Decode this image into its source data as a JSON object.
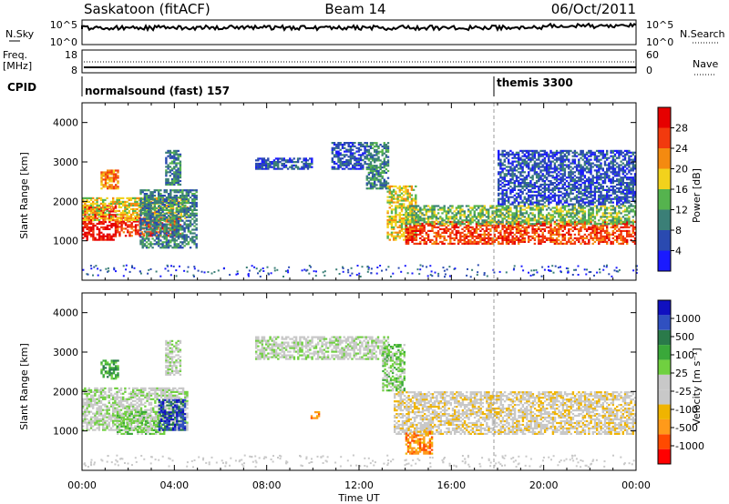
{
  "header": {
    "station": "Saskatoon (fitACF)",
    "beam": "Beam 14",
    "date": "06/Oct/2011"
  },
  "noise_panel": {
    "left_label": "N.Sky",
    "right_label": "N.Search",
    "left_ticks": [
      "10^5",
      "10^0"
    ],
    "right_ticks": [
      "10^5",
      "10^0"
    ]
  },
  "freq_panel": {
    "label_line1": "Freq.",
    "label_line2": "[MHz]",
    "right_label": "Nave",
    "left_ticks": [
      "18",
      "8"
    ],
    "right_ticks": [
      "60",
      "0"
    ]
  },
  "cpid": {
    "label": "CPID",
    "programs": [
      {
        "name": "normalsound (fast) 157",
        "start_hour": 0.0
      },
      {
        "name": "themis 3300",
        "start_hour": 18.0
      }
    ]
  },
  "colors": {
    "power_scale": [
      "#1a1aff",
      "#2a4ab0",
      "#3b7f77",
      "#55b34e",
      "#f2d21c",
      "#f48a10",
      "#f23a0e",
      "#e60000"
    ],
    "velocity_scale": [
      "#ff0000",
      "#ff4a00",
      "#ff9a1a",
      "#f0b400",
      "#c8c8c8",
      "#c8c8c8",
      "#70d040",
      "#3aa83a",
      "#2a7a4a",
      "#3050c0",
      "#1010c0"
    ],
    "ground_scatter": "#c0c0c0"
  },
  "chart_data": [
    {
      "type": "heatmap",
      "title": "Power",
      "ylabel": "Slant Range [km]",
      "xlabel": "",
      "y_ticks": [
        "1000",
        "2000",
        "3000",
        "4000"
      ],
      "ylim": [
        0,
        4500
      ],
      "xlim_hours": [
        0,
        24
      ],
      "colorbar_label": "Power [dB]",
      "colorbar_ticks": [
        "28",
        "24",
        "20",
        "16",
        "12",
        "8",
        "4"
      ],
      "scatter_regions": [
        {
          "t0": 0.0,
          "t1": 1.5,
          "r0": 1000,
          "r1": 1900,
          "level": 7
        },
        {
          "t0": 1.5,
          "t1": 4.3,
          "r0": 1100,
          "r1": 1600,
          "level": 6
        },
        {
          "t0": 0.0,
          "t1": 4.6,
          "r0": 1500,
          "r1": 2100,
          "level": 4
        },
        {
          "t0": 0.8,
          "t1": 1.6,
          "r0": 2300,
          "r1": 2800,
          "level": 5
        },
        {
          "t0": 2.5,
          "t1": 5.0,
          "r0": 800,
          "r1": 2300,
          "level": 2
        },
        {
          "t0": 3.6,
          "t1": 4.3,
          "r0": 2400,
          "r1": 3300,
          "level": 2
        },
        {
          "t0": 7.5,
          "t1": 10.0,
          "r0": 2800,
          "r1": 3100,
          "level": 1
        },
        {
          "t0": 10.8,
          "t1": 12.3,
          "r0": 2800,
          "r1": 3500,
          "level": 1
        },
        {
          "t0": 12.3,
          "t1": 13.3,
          "r0": 2300,
          "r1": 3500,
          "level": 2
        },
        {
          "t0": 13.2,
          "t1": 14.5,
          "r0": 1000,
          "r1": 2400,
          "level": 4
        },
        {
          "t0": 14.0,
          "t1": 24.0,
          "r0": 900,
          "r1": 1500,
          "level": 6
        },
        {
          "t0": 14.0,
          "t1": 24.0,
          "r0": 1400,
          "r1": 1900,
          "level": 3
        },
        {
          "t0": 18.0,
          "t1": 24.0,
          "r0": 1900,
          "r1": 3300,
          "level": 1
        }
      ]
    },
    {
      "type": "heatmap",
      "title": "Velocity",
      "ylabel": "Slant Range [km]",
      "xlabel": "Time UT",
      "y_ticks": [
        "1000",
        "2000",
        "3000",
        "4000"
      ],
      "ylim": [
        0,
        4500
      ],
      "xlim_hours": [
        0,
        24
      ],
      "x_ticks": [
        "00:00",
        "04:00",
        "08:00",
        "12:00",
        "16:00",
        "20:00",
        "00:00"
      ],
      "colorbar_label": "Velocity [m s⁻¹]",
      "colorbar_ticks": [
        "1000",
        "500",
        "100",
        "25",
        "-25",
        "-100",
        "-500",
        "-1000"
      ],
      "scatter_regions": [
        {
          "t0": 0.0,
          "t1": 4.6,
          "r0": 1000,
          "r1": 2100,
          "level": 5
        },
        {
          "t0": 1.5,
          "t1": 3.6,
          "r0": 900,
          "r1": 1500,
          "level": 6
        },
        {
          "t0": 3.3,
          "t1": 4.5,
          "r0": 1000,
          "r1": 1800,
          "level": 9
        },
        {
          "t0": 0.8,
          "t1": 1.6,
          "r0": 2300,
          "r1": 2800,
          "level": 7
        },
        {
          "t0": 3.6,
          "t1": 4.3,
          "r0": 2400,
          "r1": 3300,
          "level": 5
        },
        {
          "t0": 7.5,
          "t1": 13.3,
          "r0": 2800,
          "r1": 3400,
          "level": 5
        },
        {
          "t0": 13.0,
          "t1": 14.0,
          "r0": 2000,
          "r1": 3200,
          "level": 6
        },
        {
          "t0": 13.5,
          "t1": 24.0,
          "r0": 900,
          "r1": 2000,
          "level": 4
        },
        {
          "t0": 14.0,
          "t1": 15.2,
          "r0": 400,
          "r1": 1000,
          "level": 2
        },
        {
          "t0": 9.9,
          "t1": 10.3,
          "r0": 1300,
          "r1": 1500,
          "level": 2
        }
      ]
    }
  ]
}
